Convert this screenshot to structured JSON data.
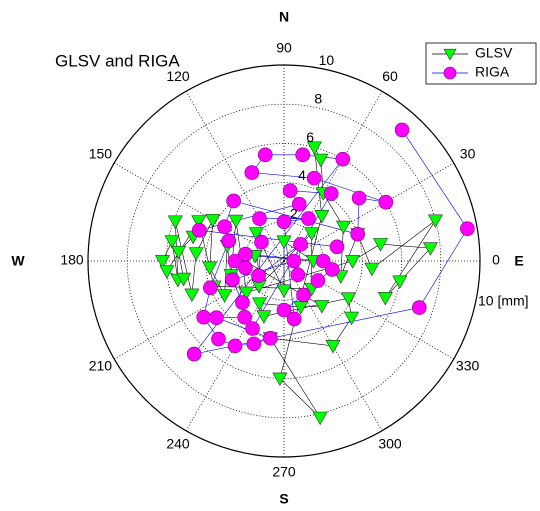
{
  "chart_data": {
    "type": "polar-scatter",
    "title": "GLSV and RIGA",
    "compass": {
      "north": "N",
      "east": "E",
      "south": "S",
      "west": "W"
    },
    "unit_label": "10 [mm]",
    "rlim": [
      0,
      10
    ],
    "rticks": [
      2,
      4,
      6,
      8,
      10
    ],
    "thetaticks": [
      0,
      30,
      60,
      90,
      120,
      150,
      180,
      210,
      240,
      270,
      300,
      330
    ],
    "grid": true,
    "legend": "upper-right",
    "series": [
      {
        "name": "GLSV",
        "color": "#00ff00",
        "marker": "triangle-down",
        "line_color": "#000000",
        "theta": [
          180,
          170,
          190,
          160,
          200,
          175,
          150,
          185,
          210,
          165,
          195,
          140,
          220,
          0,
          10,
          5,
          350,
          340,
          15,
          355,
          20,
          345,
          30,
          60,
          70,
          75,
          50,
          268,
          283,
          260,
          300,
          320,
          330,
          250,
          240,
          290,
          310,
          180,
          170,
          0,
          90,
          270,
          135,
          225,
          45,
          315,
          200,
          155,
          185,
          190,
          175,
          165
        ],
        "r": [
          6.2,
          5.8,
          5.5,
          5.9,
          5.0,
          4.5,
          4.2,
          3.8,
          3.5,
          3.0,
          2.8,
          3.2,
          2.5,
          3.5,
          5.0,
          7.5,
          6.0,
          5.5,
          8.0,
          4.5,
          4.0,
          3.0,
          3.5,
          4.0,
          5.5,
          6.0,
          3.0,
          6.0,
          8.2,
          4.0,
          5.0,
          4.5,
          3.8,
          3.0,
          2.5,
          2.5,
          3.0,
          2.0,
          1.5,
          1.5,
          1.0,
          1.5,
          2.0,
          1.8,
          2.0,
          2.0,
          3.8,
          4.8,
          6.0,
          5.2,
          5.4,
          4.8
        ]
      },
      {
        "name": "RIGA",
        "color": "#ff00ff",
        "marker": "circle",
        "line_color": "#0000ff",
        "theta": [
          48,
          10,
          341,
          226,
          60,
          80,
          100,
          110,
          70,
          30,
          40,
          20,
          130,
          150,
          160,
          200,
          215,
          230,
          240,
          250,
          260,
          220,
          235,
          180,
          190,
          170,
          0,
          350,
          330,
          300,
          270,
          280,
          90,
          60,
          120,
          140,
          210,
          45,
          315,
          0,
          200,
          225,
          245,
          55,
          85,
          75,
          160,
          15
        ],
        "r": [
          9.0,
          9.5,
          7.3,
          6.6,
          6.0,
          5.5,
          5.5,
          4.8,
          4.5,
          6.0,
          5.0,
          4.0,
          4.0,
          3.5,
          3.0,
          4.0,
          5.0,
          5.2,
          5.0,
          4.5,
          4.0,
          4.5,
          3.5,
          2.5,
          2.0,
          2.0,
          2.0,
          2.5,
          2.0,
          2.0,
          2.5,
          3.0,
          2.0,
          2.5,
          2.5,
          1.5,
          1.5,
          1.2,
          1.0,
          0.5,
          2.8,
          3.0,
          3.8,
          4.2,
          3.6,
          3.0,
          4.6,
          2.8
        ]
      }
    ]
  }
}
